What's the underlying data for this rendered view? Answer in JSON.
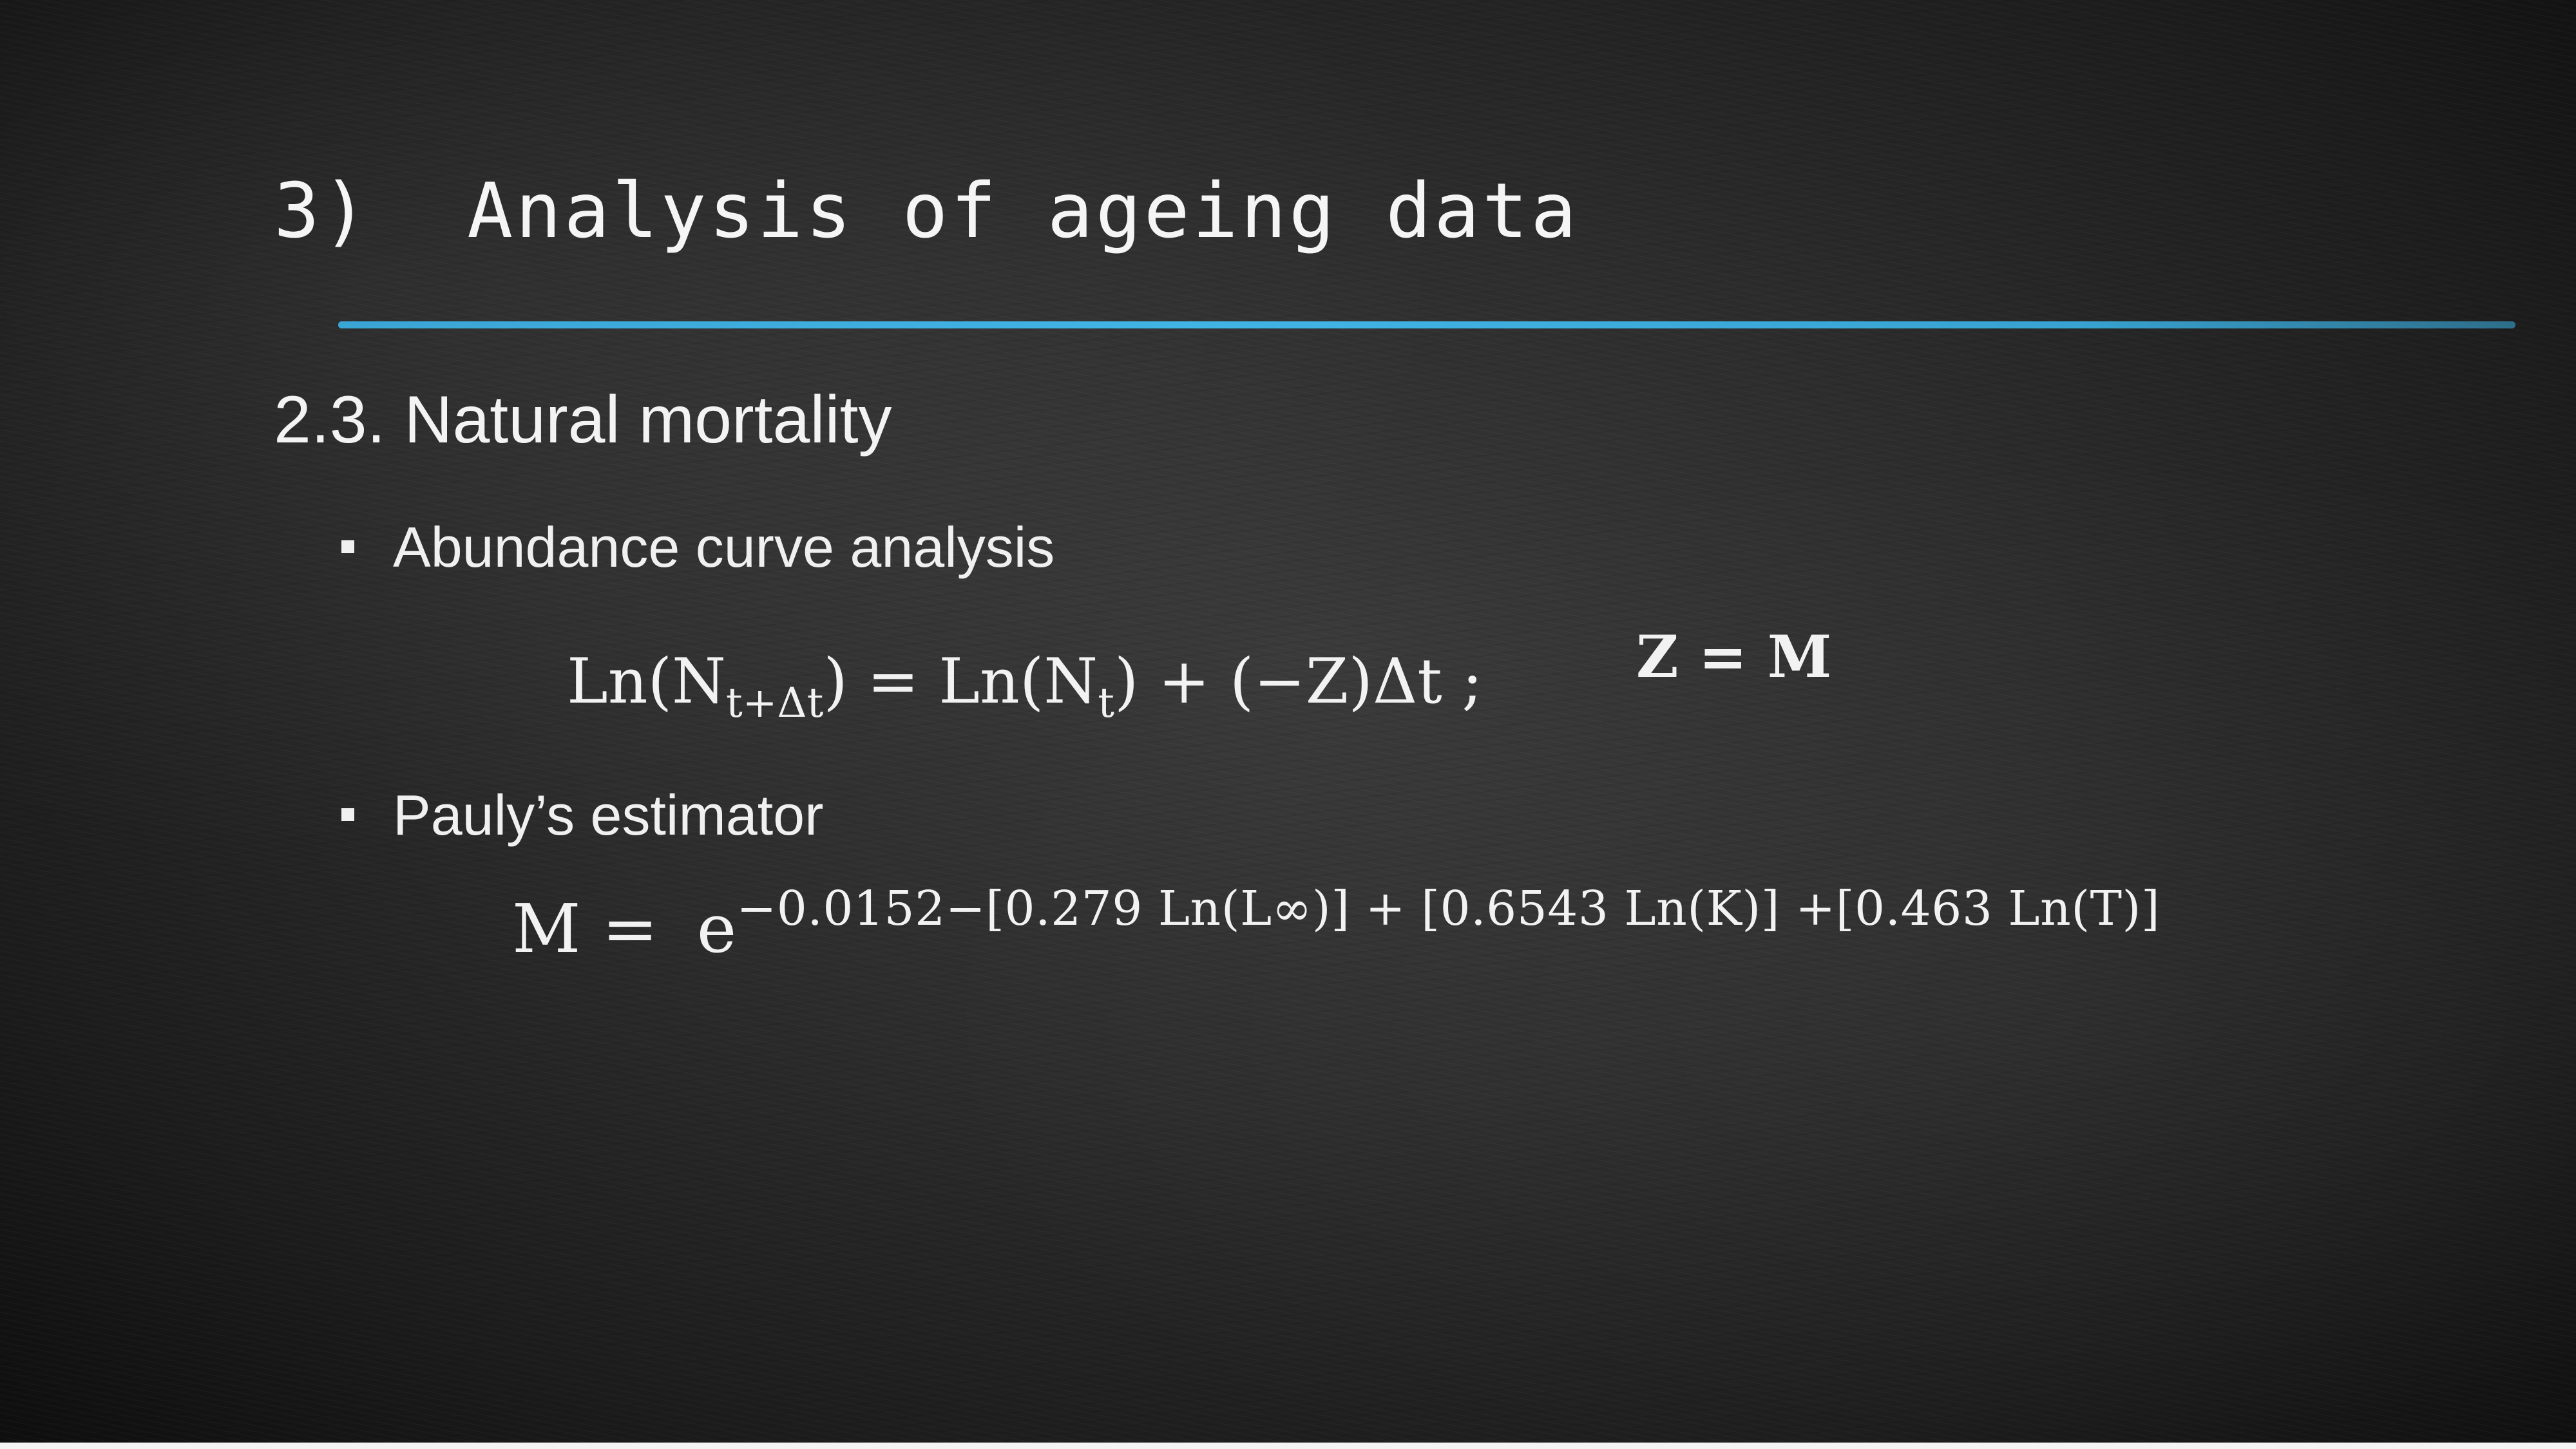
{
  "slide": {
    "title": "3)  Analysis of ageing data",
    "section": "2.3. Natural mortality",
    "bullets": [
      {
        "label": "Abundance curve analysis"
      },
      {
        "label": "Pauly’s estimator"
      }
    ],
    "equations": {
      "abundance": {
        "lhs_func": "Ln(N",
        "lhs_sub": "t+Δt",
        "rhs_a": ") = Ln(N",
        "rhs_sub": "t",
        "rhs_b": ") + (−Z)Δt ;"
      },
      "z_equals_m": "Z = M",
      "pauly": {
        "lhs": "M =",
        "base": "e",
        "exponent": "−0.0152−[0.279 Ln(L∞)] + [0.6543 Ln(K)] +[0.463 Ln(T)]"
      }
    },
    "colors": {
      "accent_rule": "#41b4e6",
      "background": "#2c2c2c",
      "text": "#f2f2f2"
    }
  }
}
